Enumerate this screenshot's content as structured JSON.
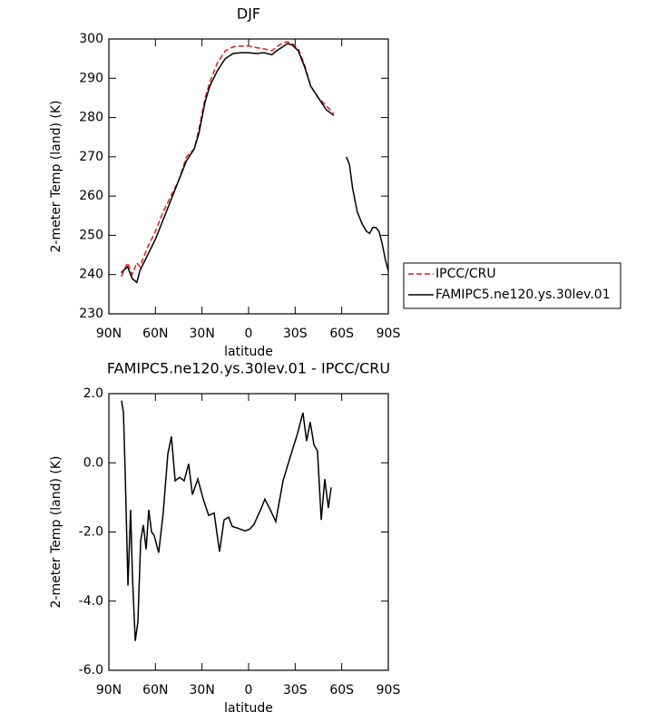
{
  "chart_data": [
    {
      "type": "line",
      "title": "DJF",
      "xlabel": "latitude",
      "ylabel": "2-meter Temp (land) (K)",
      "x": [
        82,
        78,
        75,
        72,
        70,
        65,
        60,
        55,
        50,
        45,
        40,
        35,
        32,
        28,
        25,
        20,
        15,
        10,
        5,
        0,
        -5,
        -10,
        -15,
        -18,
        -22,
        -25,
        -28,
        -32,
        -36,
        -40,
        -45,
        -50,
        -55,
        -60,
        -63,
        -65,
        -67,
        -70,
        -73,
        -76,
        -78,
        -80,
        -82,
        -84,
        -86,
        -88,
        -90
      ],
      "series": [
        {
          "name": "IPCC/CRU",
          "color": "#e41a1c",
          "line_style": "dashed",
          "values": [
            239.5,
            243,
            240,
            243,
            242,
            247,
            251,
            256,
            260,
            264,
            270,
            272,
            277,
            285,
            289,
            294,
            297,
            298,
            298.2,
            298.2,
            297.8,
            297.5,
            297,
            298,
            299,
            299.3,
            298.8,
            297.5,
            293.5,
            288,
            285,
            283,
            281,
            null,
            null,
            null,
            null,
            null,
            null,
            null,
            null,
            null,
            null,
            null,
            null,
            null,
            null
          ]
        },
        {
          "name": "FAMIPC5.ne120.ys.30lev.01",
          "color": "#000000",
          "line_style": "solid",
          "values": [
            240.5,
            242,
            239,
            238,
            241,
            245,
            249,
            254,
            259,
            264,
            269,
            272,
            276,
            284,
            288,
            292,
            295,
            296.3,
            296.5,
            296.5,
            296.3,
            296.5,
            296,
            297,
            298,
            298.8,
            298.5,
            297,
            293,
            288,
            285,
            282,
            280.5,
            null,
            270,
            268,
            262,
            256,
            253,
            251,
            250.5,
            252,
            252,
            251,
            248,
            244,
            241
          ]
        }
      ],
      "xlim": [
        90,
        -90
      ],
      "xticks": [
        {
          "value": 90,
          "label": "90N"
        },
        {
          "value": 60,
          "label": "60N"
        },
        {
          "value": 30,
          "label": "30N"
        },
        0,
        {
          "value": -30,
          "label": "30S"
        },
        {
          "value": -60,
          "label": "60S"
        },
        {
          "value": -90,
          "label": "90S"
        }
      ],
      "ylim": [
        230,
        300
      ],
      "yticks": [
        230,
        240,
        250,
        260,
        270,
        280,
        290,
        300
      ],
      "legend": "outside-right"
    },
    {
      "type": "line",
      "title": "FAMIPC5.ne120.ys.30lev.01 - IPCC/CRU",
      "xlabel": "latitude",
      "ylabel": "2-meter Temp (land) (K)",
      "x": [
        81.8,
        80.6,
        79.5,
        77.7,
        76,
        74.8,
        73,
        71.3,
        69.5,
        67.8,
        66,
        64.3,
        62.5,
        60.8,
        57.9,
        55,
        52,
        49.7,
        47.3,
        44.4,
        41.5,
        38.6,
        36.2,
        32.7,
        29.2,
        25.7,
        22.2,
        18.7,
        15.8,
        12.9,
        10.5,
        7,
        2.3,
        -0.6,
        -3.5,
        -8.2,
        -10.5,
        -14,
        -17.5,
        -22.2,
        -26.9,
        -31.5,
        -35,
        -37.4,
        -39.7,
        -42.1,
        -44.4,
        -46.8,
        -49.1,
        -51.4,
        -53.2
      ],
      "series": [
        {
          "color": "#000000",
          "line_style": "solid",
          "values": [
            1.8,
            1.45,
            -0.26,
            -3.55,
            -1.36,
            -3.3,
            -5.15,
            -4.6,
            -2.25,
            -1.8,
            -2.5,
            -1.36,
            -2.0,
            -2.1,
            -2.6,
            -1.45,
            0.26,
            0.76,
            -0.52,
            -0.42,
            -0.52,
            -0.03,
            -0.92,
            -0.47,
            -1.05,
            -1.52,
            -1.45,
            -2.57,
            -1.65,
            -1.57,
            -1.84,
            -1.89,
            -1.97,
            -1.92,
            -1.78,
            -1.31,
            -1.05,
            -1.36,
            -1.7,
            -0.52,
            0.18,
            0.84,
            1.45,
            0.63,
            1.18,
            0.52,
            0.34,
            -1.65,
            -0.47,
            -1.31,
            -0.71
          ]
        }
      ],
      "xlim": [
        90,
        -90
      ],
      "xticks": [
        {
          "value": 90,
          "label": "90N"
        },
        {
          "value": 60,
          "label": "60N"
        },
        {
          "value": 30,
          "label": "30N"
        },
        0,
        {
          "value": -30,
          "label": "30S"
        },
        {
          "value": -60,
          "label": "60S"
        },
        {
          "value": -90,
          "label": "90S"
        }
      ],
      "ylim": [
        -6.0,
        2.0
      ],
      "yticks": [
        {
          "value": -6.0,
          "label": "-6.0"
        },
        {
          "value": -4.0,
          "label": "-4.0"
        },
        {
          "value": -2.0,
          "label": "-2.0"
        },
        {
          "value": 0.0,
          "label": "0.0"
        },
        {
          "value": 2.0,
          "label": "2.0"
        }
      ]
    }
  ]
}
